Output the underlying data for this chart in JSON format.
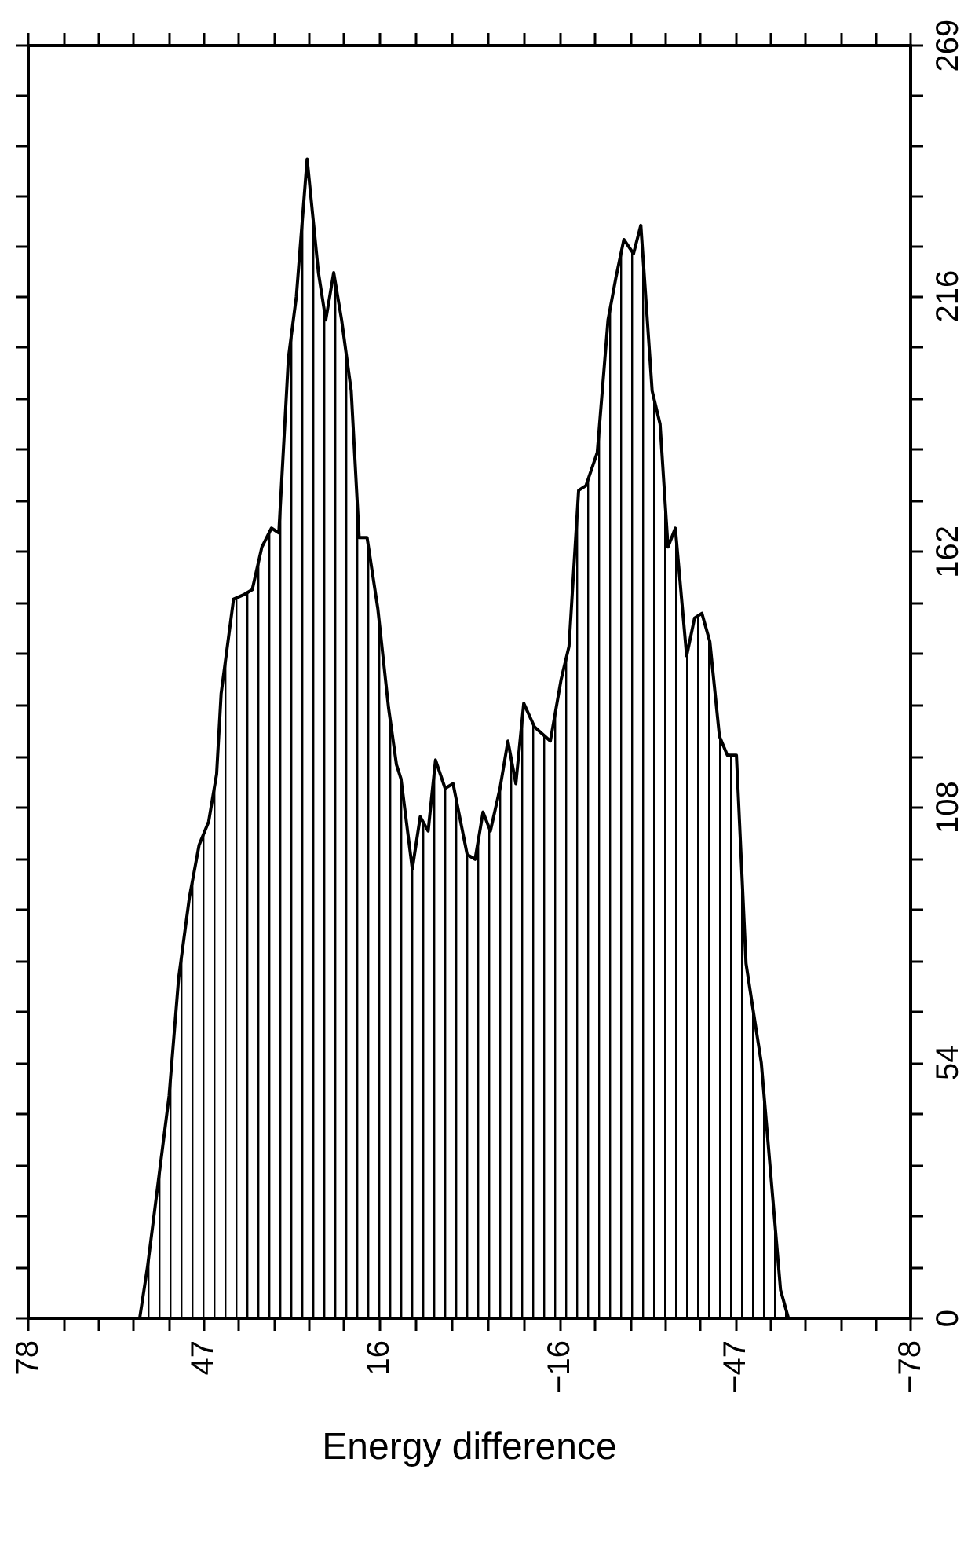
{
  "chart_data": {
    "type": "area",
    "xlabel": "Energy difference",
    "x": [
      58.3,
      56.9,
      53.1,
      51.4,
      49.5,
      47.8,
      46.1,
      44.7,
      43.9,
      41.7,
      39.8,
      38.4,
      36.7,
      35.0,
      33.7,
      32.0,
      30.6,
      28.7,
      26.7,
      25.4,
      24.0,
      22.6,
      20.9,
      19.5,
      18.1,
      16.2,
      14.3,
      12.9,
      12.1,
      10.1,
      8.7,
      7.3,
      6.0,
      4.3,
      2.9,
      0.4,
      -1.0,
      -2.4,
      -3.7,
      -5.4,
      -6.8,
      -8.2,
      -9.6,
      -11.5,
      -14.3,
      -16.2,
      -17.6,
      -19.3,
      -20.6,
      -22.6,
      -24.5,
      -25.9,
      -27.3,
      -29.0,
      -30.3,
      -32.3,
      -33.7,
      -35.1,
      -36.4,
      -38.4,
      -39.8,
      -41.1,
      -42.5,
      -44.2,
      -45.6,
      -47.2,
      -48.9,
      -50.3,
      -51.6,
      -55.0,
      -56.4
    ],
    "values": [
      0,
      11,
      47,
      72,
      89,
      100,
      105,
      115,
      132,
      152,
      153,
      154,
      163,
      167,
      166,
      203,
      216,
      245,
      221,
      211,
      221,
      211,
      196,
      165,
      165,
      150,
      129,
      117,
      114,
      95,
      106,
      103,
      118,
      112,
      113,
      98,
      97,
      107,
      103,
      112,
      122,
      113,
      130,
      125,
      122,
      135,
      142,
      175,
      176,
      183,
      211,
      220,
      228,
      225,
      231,
      196,
      189,
      163,
      167,
      140,
      148,
      149,
      143,
      123,
      119,
      119,
      75,
      64,
      54,
      6,
      0
    ],
    "color": "#000000",
    "xlim": [
      78,
      -78
    ],
    "xticks": [
      78,
      47,
      16,
      -16,
      -47,
      -78
    ],
    "ylim": [
      0,
      269
    ],
    "yticks": [
      0,
      54,
      108,
      162,
      216,
      269
    ],
    "tick_labels": "xy",
    "grid": false,
    "marker": "none",
    "line_style": "solid"
  }
}
